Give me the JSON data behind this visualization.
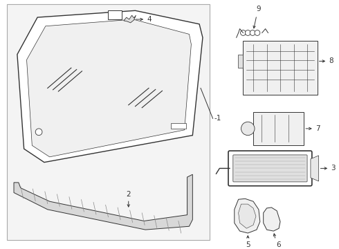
{
  "bg_color": "#ffffff",
  "panel_bg": "#f2f2f2",
  "line_color": "#333333",
  "label_color": "#111111",
  "font_size": 7.5
}
